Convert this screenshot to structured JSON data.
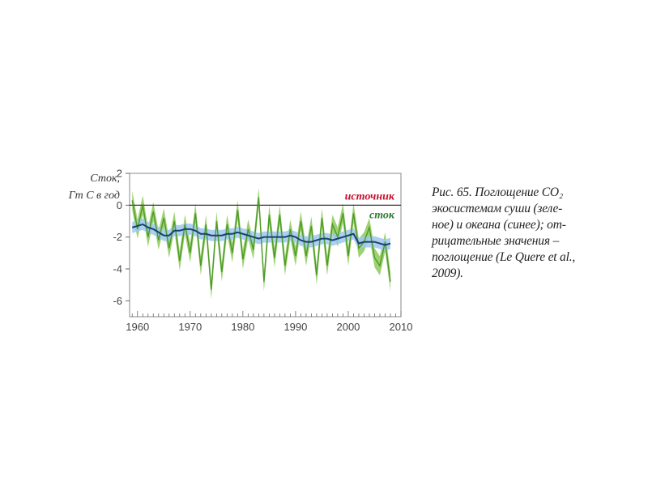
{
  "chart_data": {
    "type": "line",
    "ylabel_line1": "Сток,",
    "ylabel_line2": "Гт С в год",
    "ylim": [
      -7,
      2
    ],
    "xlim": [
      1958.5,
      2010
    ],
    "xticks": [
      "1960",
      "1970",
      "1980",
      "1990",
      "2000",
      "2010"
    ],
    "yticks": [
      "2",
      "0",
      "-2",
      "-4",
      "-6"
    ],
    "zero_line_label_above": "источник",
    "zero_line_label_below": "сток",
    "series": [
      {
        "color": "#7cc242",
        "uncertainty": 0.6,
        "x": [
          1959,
          1960,
          1961,
          1962,
          1963,
          1964,
          1965,
          1966,
          1967,
          1968,
          1969,
          1970,
          1971,
          1972,
          1973,
          1974,
          1975,
          1976,
          1977,
          1978,
          1979,
          1980,
          1981,
          1982,
          1983,
          1984,
          1985,
          1986,
          1987,
          1988,
          1989,
          1990,
          1991,
          1992,
          1993,
          1994,
          1995,
          1996,
          1997,
          1998,
          1999,
          2000,
          2001,
          2002,
          2003,
          2004,
          2005,
          2006,
          2007,
          2008
        ],
        "y": [
          0.3,
          -1.5,
          0.0,
          -2.0,
          -0.4,
          -2.2,
          -0.8,
          -2.7,
          -1.0,
          -3.5,
          -1.2,
          -3.0,
          -0.5,
          -3.8,
          -1.2,
          -5.3,
          -1.0,
          -4.2,
          -1.2,
          -3.0,
          -0.3,
          -3.4,
          -1.5,
          -2.8,
          0.5,
          -4.8,
          -0.6,
          -3.3,
          -0.6,
          -3.8,
          -1.5,
          -3.2,
          -1.0,
          -3.2,
          -1.3,
          -4.4,
          -0.8,
          -3.8,
          -1.2,
          -2.0,
          -0.5,
          -3.2,
          -0.5,
          -2.7,
          -2.3,
          -1.4,
          -3.3,
          -3.8,
          -2.3,
          -4.8
        ]
      },
      {
        "color": "#1c3f6e",
        "band_color": "#9cc8ee",
        "uncertainty": 0.35,
        "x": [
          1959,
          1960,
          1961,
          1962,
          1963,
          1964,
          1965,
          1966,
          1967,
          1968,
          1969,
          1970,
          1971,
          1972,
          1973,
          1974,
          1975,
          1976,
          1977,
          1978,
          1979,
          1980,
          1981,
          1982,
          1983,
          1984,
          1985,
          1986,
          1987,
          1988,
          1989,
          1990,
          1991,
          1992,
          1993,
          1994,
          1995,
          1996,
          1997,
          1998,
          1999,
          2000,
          2001,
          2002,
          2003,
          2004,
          2005,
          2006,
          2007,
          2008
        ],
        "y": [
          -1.4,
          -1.3,
          -1.2,
          -1.4,
          -1.5,
          -1.7,
          -1.9,
          -1.9,
          -1.6,
          -1.6,
          -1.5,
          -1.5,
          -1.6,
          -1.8,
          -1.8,
          -1.9,
          -1.9,
          -1.9,
          -1.8,
          -1.8,
          -1.7,
          -1.8,
          -1.9,
          -2.0,
          -2.1,
          -2.0,
          -2.0,
          -2.0,
          -2.0,
          -2.0,
          -1.9,
          -2.0,
          -2.2,
          -2.3,
          -2.3,
          -2.2,
          -2.1,
          -2.1,
          -2.2,
          -2.1,
          -2.0,
          -1.9,
          -1.8,
          -2.4,
          -2.3,
          -2.3,
          -2.3,
          -2.4,
          -2.5,
          -2.4
        ]
      }
    ]
  },
  "caption": {
    "line1": "Рис. 65. Поглощение CO₂",
    "line2": "экосистемам суши (зеле-",
    "line3": "ное) и океана (синее); от-",
    "line4": "рицательные значения –",
    "line5": "поглощение (Le Quere et al.,",
    "line6": "2009)."
  }
}
